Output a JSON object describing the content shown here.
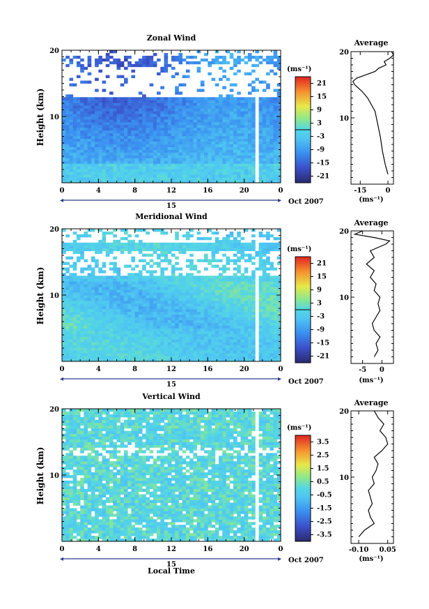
{
  "chart_data": [
    {
      "type": "heatmap",
      "title": "Zonal Wind",
      "ylabel": "Height (km)",
      "xlabel": "",
      "x_ticks": [
        "0",
        "4",
        "8",
        "12",
        "16",
        "20",
        "0"
      ],
      "y_ticks": [
        "20",
        "10"
      ],
      "xlim": [
        0,
        24
      ],
      "ylim": [
        0,
        20
      ],
      "day_label": "15",
      "month_label": "Oct 2007",
      "colorbar": {
        "unit": "(ms⁻¹)",
        "ticks": [
          "21",
          "15",
          "9",
          "3",
          "-3",
          "-9",
          "-15",
          "-21"
        ],
        "range": [
          -24,
          24
        ]
      },
      "profile": {
        "title": "Average",
        "unit": "(ms⁻¹)",
        "x_ticks": [
          "-15",
          "0"
        ],
        "xlim": [
          -20,
          3
        ],
        "y_ticks": [
          "20",
          "10"
        ],
        "heights": [
          1.5,
          3,
          5,
          7,
          9,
          11,
          12,
          13,
          14,
          15,
          15.5,
          16,
          16.5,
          17,
          17.5,
          18,
          18.5,
          19,
          19.5,
          20
        ],
        "values": [
          0,
          -1.5,
          -3,
          -4,
          -5.5,
          -7,
          -9,
          -11,
          -14,
          -18,
          -19,
          -17,
          -12,
          -7,
          -5,
          -1,
          -2,
          1,
          3,
          2
        ]
      }
    },
    {
      "type": "heatmap",
      "title": "Meridional Wind",
      "ylabel": "Height (km)",
      "xlabel": "",
      "x_ticks": [
        "0",
        "4",
        "8",
        "12",
        "16",
        "20",
        "0"
      ],
      "y_ticks": [
        "20",
        "10"
      ],
      "xlim": [
        0,
        24
      ],
      "ylim": [
        0,
        20
      ],
      "day_label": "15",
      "month_label": "Oct 2007",
      "colorbar": {
        "unit": "(ms⁻¹)",
        "ticks": [
          "21",
          "15",
          "9",
          "3",
          "-3",
          "-9",
          "-15",
          "-21"
        ],
        "range": [
          -24,
          24
        ]
      },
      "profile": {
        "title": "Average",
        "unit": "(ms⁻¹)",
        "x_ticks": [
          "-5",
          "0"
        ],
        "xlim": [
          -8,
          3
        ],
        "y_ticks": [
          "20",
          "10"
        ],
        "heights": [
          1,
          2,
          3,
          4,
          5,
          6,
          7,
          8,
          9,
          10,
          11,
          12,
          13,
          14,
          15,
          16,
          17,
          18,
          18.5,
          19,
          19.5,
          20
        ],
        "values": [
          -2,
          -1,
          -1.5,
          -0.5,
          -2,
          -2.5,
          -1.5,
          -0.5,
          -1,
          -0.5,
          -2,
          -1.5,
          -3,
          -2,
          -4,
          -2,
          -3,
          1,
          2,
          -2,
          -7,
          -5
        ]
      }
    },
    {
      "type": "heatmap",
      "title": "Vertical Wind",
      "ylabel": "Height (km)",
      "xlabel": "Local Time",
      "x_ticks": [
        "0",
        "4",
        "8",
        "12",
        "16",
        "20",
        "0"
      ],
      "y_ticks": [
        "20",
        "10"
      ],
      "xlim": [
        0,
        24
      ],
      "ylim": [
        0,
        20
      ],
      "day_label": "15",
      "month_label": "Oct 2007",
      "colorbar": {
        "unit": "(ms⁻¹)",
        "ticks": [
          "3.5",
          "2.5",
          "1.5",
          "0.5",
          "-0.5",
          "-1.5",
          "-2.5",
          "-3.5"
        ],
        "range": [
          -4,
          4
        ]
      },
      "profile": {
        "title": "Average",
        "unit": "(ms⁻¹)",
        "x_ticks": [
          "-0.10",
          "0.05"
        ],
        "xlim": [
          -0.14,
          0.08
        ],
        "y_ticks": [
          "20",
          "10"
        ],
        "heights": [
          1,
          2,
          3,
          4,
          5,
          6,
          7,
          8,
          9,
          10,
          11,
          12,
          13,
          14,
          15,
          16,
          17,
          18,
          19,
          20
        ],
        "values": [
          -0.1,
          -0.07,
          -0.02,
          -0.04,
          -0.05,
          -0.03,
          -0.04,
          -0.05,
          -0.02,
          -0.03,
          -0.01,
          0.0,
          -0.02,
          0.02,
          0.05,
          0.04,
          0.01,
          0.03,
          0.0,
          -0.02
        ]
      }
    }
  ]
}
